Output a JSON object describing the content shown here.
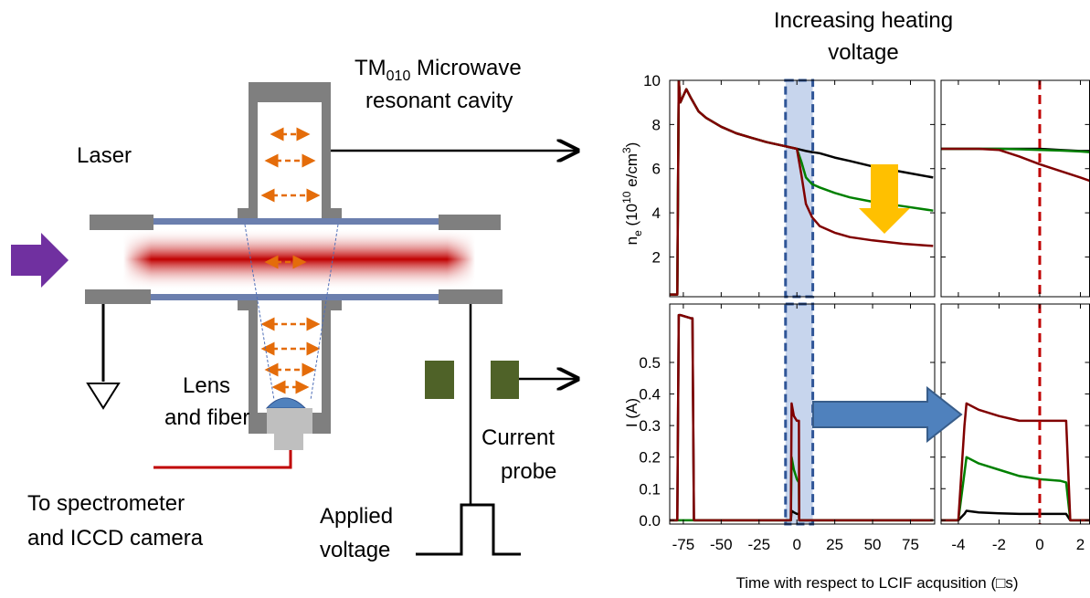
{
  "diagram": {
    "cavity_label": {
      "prefix": "TM",
      "subscript": "010",
      "line1_rest": " Microwave",
      "line2": "resonant cavity"
    },
    "laser": "Laser",
    "lens": [
      "Lens",
      "and fiber"
    ],
    "spectrometer": [
      "To spectrometer",
      "and ICCD camera"
    ],
    "probe": [
      "Current",
      "probe"
    ],
    "voltage": [
      "Applied",
      "voltage"
    ]
  },
  "annotation": [
    "Increasing heating",
    "voltage"
  ],
  "xlabel": "Time with respect to LCIF acqusition (□s)",
  "chart_data": [
    {
      "type": "line",
      "ylabel": [
        "n",
        "e",
        " (10",
        "10",
        " e/cm",
        "3",
        ")"
      ],
      "xlim": [
        -84,
        91
      ],
      "ylim": [
        0.2,
        10
      ],
      "xticks": [
        -75,
        -50,
        -25,
        0,
        25,
        50,
        75
      ],
      "yticks": [
        2,
        4,
        6,
        8,
        10
      ],
      "xtick_labels": false,
      "ytick_labels": true,
      "highlight": [
        -7.5,
        10.5
      ],
      "x": [
        -84,
        -79,
        -78,
        -77,
        -75,
        -73,
        -70,
        -65,
        -60,
        -50,
        -40,
        -30,
        -20,
        -10,
        0,
        3,
        6,
        10,
        15,
        25,
        35,
        50,
        70,
        90
      ],
      "series": [
        {
          "color": "#000000",
          "values": [
            0.3,
            0.3,
            10,
            9.0,
            9.3,
            9.6,
            9.2,
            8.6,
            8.3,
            7.9,
            7.6,
            7.4,
            7.2,
            7.05,
            6.9,
            6.85,
            6.8,
            6.75,
            6.7,
            6.5,
            6.35,
            6.1,
            5.85,
            5.6
          ]
        },
        {
          "color": "#008000",
          "values": [
            0.3,
            0.3,
            10,
            9.0,
            9.3,
            9.6,
            9.2,
            8.6,
            8.3,
            7.9,
            7.6,
            7.4,
            7.2,
            7.05,
            6.9,
            6.3,
            5.6,
            5.3,
            5.15,
            4.9,
            4.7,
            4.5,
            4.3,
            4.1
          ]
        },
        {
          "color": "#800000",
          "values": [
            0.3,
            0.3,
            10,
            9.0,
            9.3,
            9.6,
            9.2,
            8.6,
            8.3,
            7.9,
            7.6,
            7.4,
            7.2,
            7.05,
            6.9,
            5.7,
            4.4,
            3.8,
            3.4,
            3.1,
            2.9,
            2.75,
            2.6,
            2.5
          ]
        }
      ]
    },
    {
      "type": "line",
      "xlim": [
        -4.85,
        2.45
      ],
      "ylim": [
        0.2,
        10
      ],
      "xticks": [
        -4,
        -2,
        0,
        2
      ],
      "yticks": [
        2,
        4,
        6,
        8,
        10
      ],
      "xtick_labels": false,
      "ytick_labels": false,
      "vline": 0,
      "vline_color": "#c00000",
      "x": [
        -4.85,
        -3,
        -2,
        -1,
        0,
        1,
        2,
        2.45
      ],
      "series": [
        {
          "color": "#000000",
          "values": [
            6.9,
            6.9,
            6.9,
            6.9,
            6.9,
            6.85,
            6.8,
            6.8
          ]
        },
        {
          "color": "#008000",
          "values": [
            6.9,
            6.9,
            6.9,
            6.88,
            6.85,
            6.82,
            6.78,
            6.75
          ]
        },
        {
          "color": "#800000",
          "values": [
            6.9,
            6.9,
            6.85,
            6.55,
            6.2,
            5.9,
            5.6,
            5.45
          ]
        }
      ]
    },
    {
      "type": "line",
      "ylabel": "I (A)",
      "xlim": [
        -84,
        91
      ],
      "ylim": [
        -0.012,
        0.685
      ],
      "xticks": [
        -75,
        -50,
        -25,
        0,
        25,
        50,
        75
      ],
      "yticks": [
        {
          "value": 0,
          "label": "0.0"
        },
        0.1,
        0.2,
        0.3,
        0.4,
        0.5
      ],
      "xtick_labels": true,
      "ytick_labels": true,
      "highlight": [
        -7.5,
        10.5
      ],
      "x": [
        -84,
        -79,
        -78,
        -77,
        -70,
        -69,
        -68,
        -10,
        -4,
        -3.5,
        -2,
        0,
        1.3,
        1.5,
        10,
        90
      ],
      "series": [
        {
          "color": "#000000",
          "values": [
            0,
            0,
            0.65,
            0.65,
            0.64,
            0.64,
            0,
            0,
            0,
            0.03,
            0.025,
            0.02,
            0.02,
            0,
            0,
            0
          ]
        },
        {
          "color": "#008000",
          "values": [
            0,
            0,
            0,
            0,
            0,
            0,
            0,
            0,
            0,
            0.2,
            0.16,
            0.13,
            0.12,
            0,
            0,
            0
          ]
        },
        {
          "color": "#800000",
          "values": [
            0,
            0,
            0.65,
            0.65,
            0.64,
            0.64,
            0,
            0,
            0,
            0.37,
            0.33,
            0.315,
            0.315,
            0,
            0,
            0
          ]
        }
      ]
    },
    {
      "type": "line",
      "xlim": [
        -4.85,
        2.45
      ],
      "ylim": [
        -0.012,
        0.685
      ],
      "xticks": [
        -4,
        -2,
        0,
        2
      ],
      "yticks": [
        0,
        0.1,
        0.2,
        0.3,
        0.4,
        0.5
      ],
      "xtick_labels": true,
      "ytick_labels": false,
      "vline": 0,
      "vline_color": "#c00000",
      "x": [
        -4.85,
        -4,
        -3.7,
        -3.6,
        -3,
        -2,
        -1,
        0,
        1,
        1.3,
        1.5,
        2.45
      ],
      "series": [
        {
          "color": "#000000",
          "values": [
            0,
            0,
            0.02,
            0.03,
            0.025,
            0.022,
            0.02,
            0.02,
            0.02,
            0.02,
            0,
            0
          ]
        },
        {
          "color": "#008000",
          "values": [
            0,
            0,
            0.15,
            0.2,
            0.18,
            0.16,
            0.14,
            0.13,
            0.125,
            0.12,
            0,
            0
          ]
        },
        {
          "color": "#800000",
          "values": [
            0,
            0,
            0.3,
            0.37,
            0.35,
            0.33,
            0.315,
            0.315,
            0.315,
            0.315,
            0,
            0
          ]
        }
      ]
    }
  ]
}
